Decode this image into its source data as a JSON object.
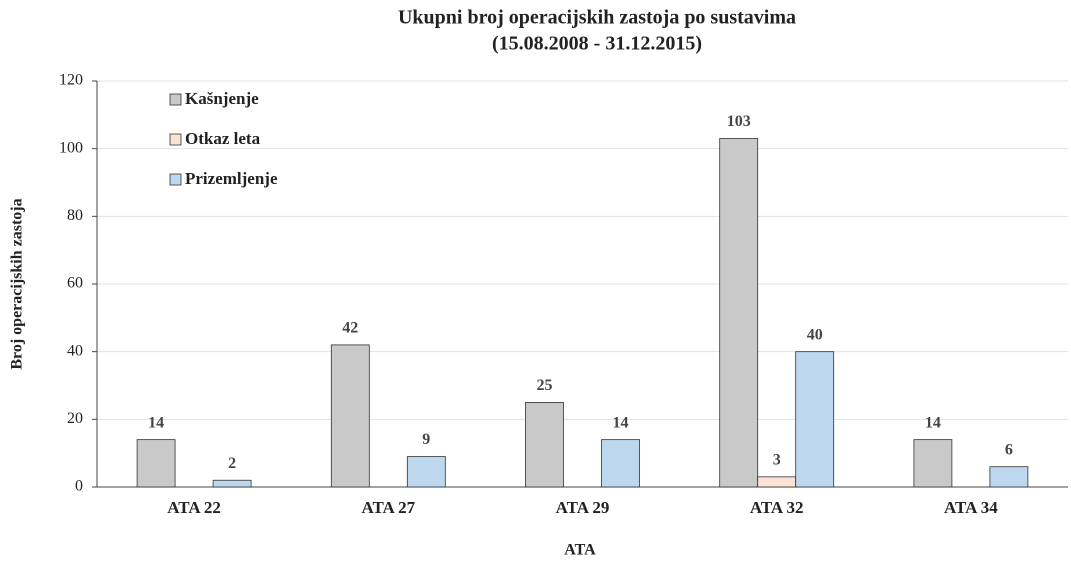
{
  "chart_data": {
    "type": "bar",
    "title": "Ukupni broj operacijskih zastoja po sustavima",
    "subtitle": "(15.08.2008 - 31.12.2015)",
    "x_label": "ATA",
    "y_label": "Broj operacijskih zastoja",
    "categories": [
      "ATA 22",
      "ATA 27",
      "ATA 29",
      "ATA 32",
      "ATA 34"
    ],
    "series": [
      {
        "name": "Kašnjenje",
        "color": "#c9c9c9",
        "values": [
          14,
          42,
          25,
          103,
          14
        ]
      },
      {
        "name": "Otkaz leta",
        "color": "#fbe2d4",
        "values": [
          null,
          null,
          null,
          3,
          null
        ]
      },
      {
        "name": "Prizemljenje",
        "color": "#bdd7ee",
        "values": [
          2,
          9,
          14,
          40,
          6
        ]
      }
    ],
    "ylim": [
      0,
      120
    ],
    "yticks": [
      0,
      20,
      40,
      60,
      80,
      100,
      120
    ],
    "grid": true,
    "legend": "top-left"
  }
}
